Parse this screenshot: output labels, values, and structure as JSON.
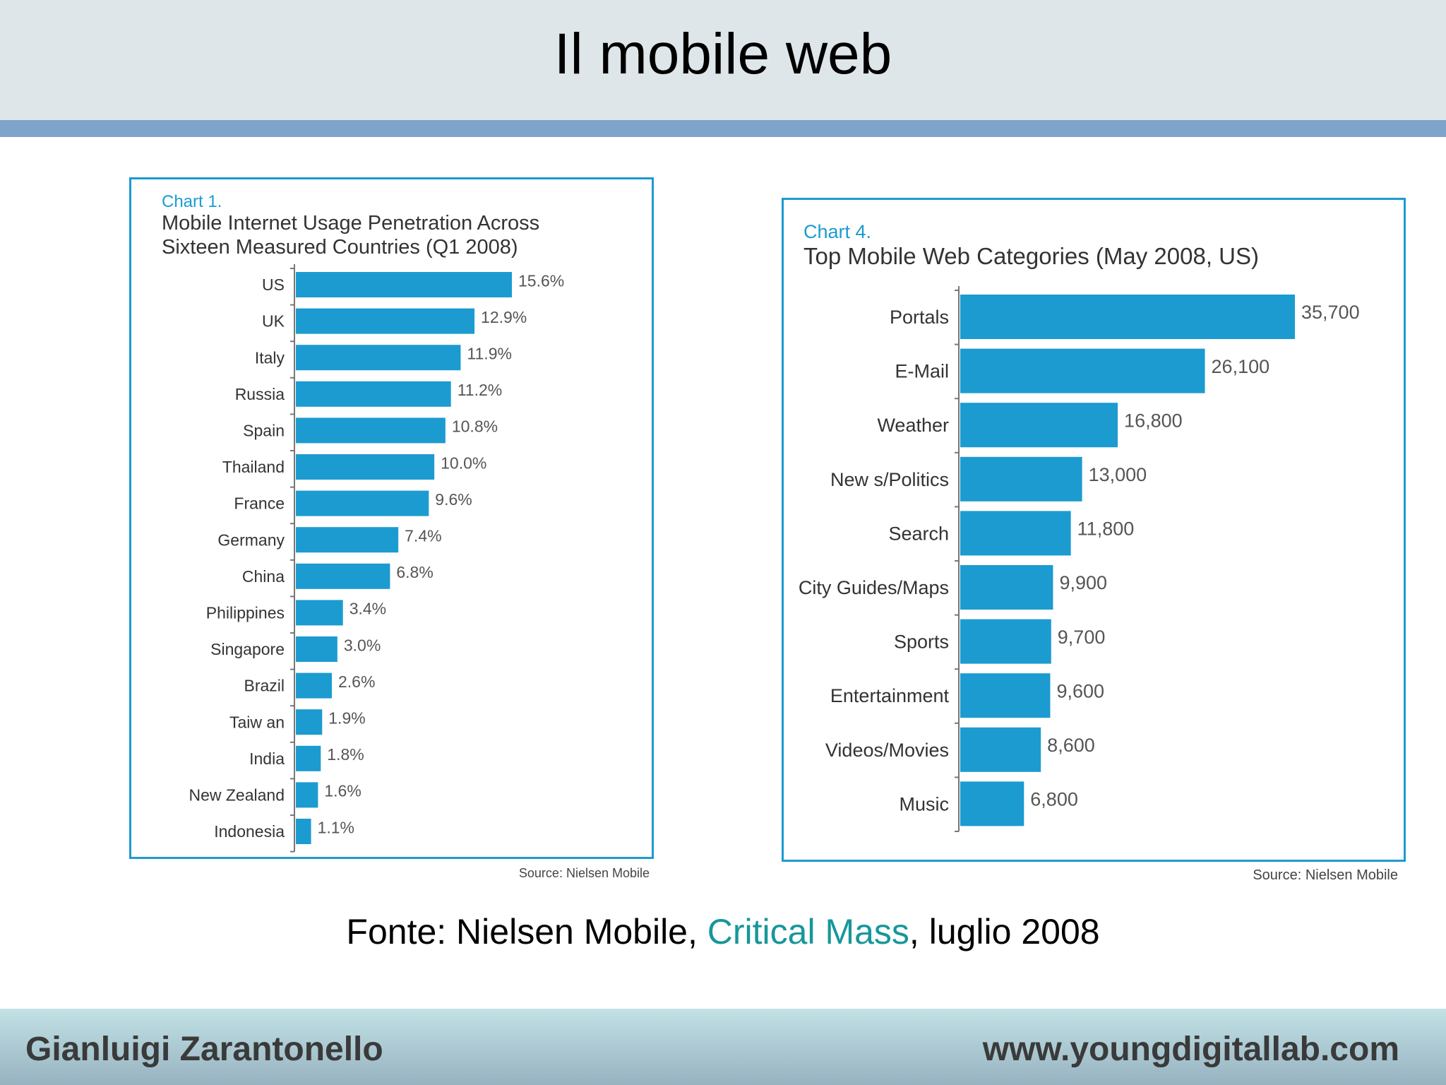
{
  "slide": {
    "title": "Il mobile web",
    "caption_prefix": "Fonte: Nielsen Mobile, ",
    "caption_link": "Critical Mass",
    "caption_suffix": ", luglio 2008",
    "footer_left": "Gianluigi Zarantonello",
    "footer_right": "www.youngdigitallab.com"
  },
  "colors": {
    "bar": "#1c9bd0",
    "frame": "#1c9bd0",
    "link": "#16979a"
  },
  "chart_data": [
    {
      "type": "bar",
      "orientation": "horizontal",
      "label": "Chart 1.",
      "title": "Mobile Internet Usage Penetration Across Sixteen Measured Countries (Q1 2008)",
      "categories": [
        "US",
        "UK",
        "Italy",
        "Russia",
        "Spain",
        "Thailand",
        "France",
        "Germany",
        "China",
        "Philippines",
        "Singapore",
        "Brazil",
        "Taiw an",
        "India",
        "New Zealand",
        "Indonesia"
      ],
      "values": [
        15.6,
        12.9,
        11.9,
        11.2,
        10.8,
        10.0,
        9.6,
        7.4,
        6.8,
        3.4,
        3.0,
        2.6,
        1.9,
        1.8,
        1.6,
        1.1
      ],
      "value_labels": [
        "15.6%",
        "12.9%",
        "11.9%",
        "11.2%",
        "10.8%",
        "10.0%",
        "9.6%",
        "7.4%",
        "6.8%",
        "3.4%",
        "3.0%",
        "2.6%",
        "1.9%",
        "1.8%",
        "1.6%",
        "1.1%"
      ],
      "source": "Source: Nielsen Mobile"
    },
    {
      "type": "bar",
      "orientation": "horizontal",
      "label": "Chart 4.",
      "title": "Top Mobile Web Categories (May 2008, US)",
      "categories": [
        "Portals",
        "E-Mail",
        "Weather",
        "New s/Politics",
        "Search",
        "City Guides/Maps",
        "Sports",
        "Entertainment",
        "Videos/Movies",
        "Music"
      ],
      "values": [
        35700,
        26100,
        16800,
        13000,
        11800,
        9900,
        9700,
        9600,
        8600,
        6800
      ],
      "value_labels": [
        "35,700",
        "26,100",
        "16,800",
        "13,000",
        "11,800",
        "9,900",
        "9,700",
        "9,600",
        "8,600",
        "6,800"
      ],
      "source": "Source: Nielsen Mobile"
    }
  ]
}
